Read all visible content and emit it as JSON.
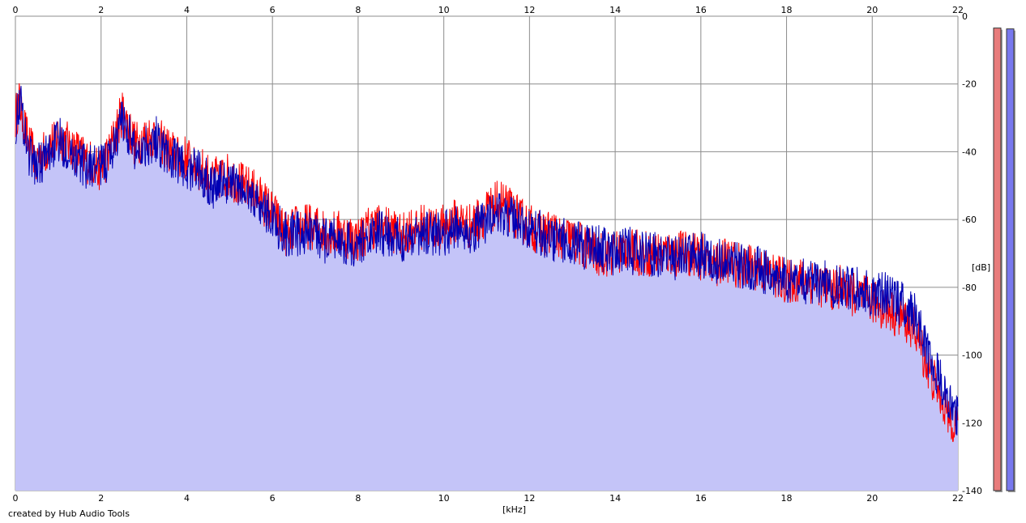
{
  "chart_data": {
    "type": "area",
    "xlabel": "[kHz]",
    "ylabel": "[dB]",
    "xlim": [
      0,
      22
    ],
    "ylim": [
      -140,
      0
    ],
    "x_ticks": [
      "0",
      "2",
      "4",
      "6",
      "8",
      "10",
      "12",
      "14",
      "16",
      "18",
      "20",
      "22"
    ],
    "y_ticks": [
      "0",
      "-20",
      "-40",
      "-60",
      "-80",
      "-100",
      "-120",
      "-140"
    ],
    "grid": true,
    "credit": "created by Hub Audio Tools",
    "series": [
      {
        "color": "#ff0000",
        "x": [
          0,
          0.1,
          0.3,
          0.5,
          0.7,
          1.0,
          1.3,
          1.6,
          2.0,
          2.2,
          2.5,
          2.8,
          3.0,
          3.3,
          3.6,
          4.0,
          4.3,
          4.6,
          5.0,
          5.3,
          5.6,
          6.0,
          6.3,
          6.6,
          7.0,
          7.3,
          7.6,
          8.0,
          8.3,
          8.6,
          9.0,
          9.3,
          9.6,
          10.0,
          10.3,
          10.6,
          11.0,
          11.3,
          11.6,
          12.0,
          12.3,
          12.6,
          13.0,
          13.3,
          13.6,
          14.0,
          14.3,
          14.6,
          15.0,
          15.3,
          15.6,
          16.0,
          16.3,
          16.6,
          17.0,
          17.3,
          17.6,
          18.0,
          18.3,
          18.6,
          19.0,
          19.3,
          19.6,
          20.0,
          20.3,
          20.6,
          21.0,
          21.3,
          21.6,
          21.8,
          22.0
        ],
        "y": [
          -30,
          -25,
          -38,
          -42,
          -40,
          -35,
          -38,
          -42,
          -45,
          -40,
          -28,
          -38,
          -36,
          -35,
          -40,
          -42,
          -45,
          -48,
          -47,
          -50,
          -52,
          -58,
          -64,
          -62,
          -62,
          -64,
          -64,
          -66,
          -62,
          -62,
          -64,
          -62,
          -62,
          -62,
          -60,
          -62,
          -58,
          -54,
          -58,
          -62,
          -64,
          -64,
          -66,
          -68,
          -70,
          -70,
          -68,
          -70,
          -70,
          -70,
          -70,
          -70,
          -72,
          -72,
          -74,
          -74,
          -76,
          -78,
          -78,
          -78,
          -80,
          -80,
          -82,
          -84,
          -86,
          -88,
          -92,
          -104,
          -112,
          -118,
          -120
        ]
      },
      {
        "color": "#0000b4",
        "x": [
          0,
          0.1,
          0.3,
          0.5,
          0.7,
          1.0,
          1.3,
          1.6,
          2.0,
          2.2,
          2.5,
          2.8,
          3.0,
          3.3,
          3.6,
          4.0,
          4.3,
          4.6,
          5.0,
          5.3,
          5.6,
          6.0,
          6.3,
          6.6,
          7.0,
          7.3,
          7.6,
          8.0,
          8.3,
          8.6,
          9.0,
          9.3,
          9.6,
          10.0,
          10.3,
          10.6,
          11.0,
          11.3,
          11.6,
          12.0,
          12.3,
          12.6,
          13.0,
          13.3,
          13.6,
          14.0,
          14.3,
          14.6,
          15.0,
          15.3,
          15.6,
          16.0,
          16.3,
          16.6,
          17.0,
          17.3,
          17.6,
          18.0,
          18.3,
          18.6,
          19.0,
          19.3,
          19.6,
          20.0,
          20.3,
          20.6,
          21.0,
          21.3,
          21.6,
          21.8,
          22.0
        ],
        "y": [
          -32,
          -24,
          -40,
          -44,
          -42,
          -36,
          -40,
          -44,
          -44,
          -42,
          -30,
          -40,
          -38,
          -36,
          -42,
          -44,
          -46,
          -50,
          -48,
          -52,
          -54,
          -60,
          -64,
          -64,
          -64,
          -66,
          -66,
          -68,
          -64,
          -64,
          -66,
          -64,
          -64,
          -64,
          -62,
          -64,
          -60,
          -58,
          -60,
          -62,
          -64,
          -66,
          -66,
          -68,
          -68,
          -70,
          -68,
          -70,
          -70,
          -72,
          -70,
          -70,
          -72,
          -72,
          -74,
          -74,
          -76,
          -78,
          -78,
          -78,
          -78,
          -80,
          -80,
          -82,
          -82,
          -84,
          -88,
          -100,
          -108,
          -114,
          -118
        ]
      }
    ],
    "meters": [
      {
        "color": "#e87c7c",
        "level_db": -7
      },
      {
        "color": "#7878ee",
        "level_db": -7.5
      }
    ]
  }
}
